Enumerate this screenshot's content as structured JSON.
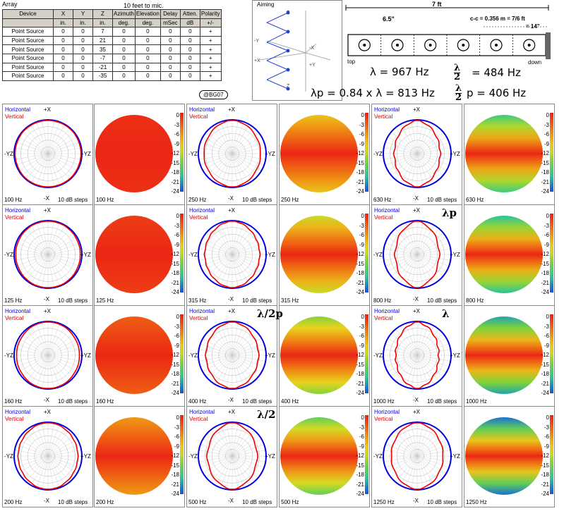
{
  "array": {
    "title": "Array",
    "subtitle": "10 feet to mic.",
    "columns": [
      "Device",
      "X",
      "Y",
      "Z",
      "Azimuth",
      "Elevation",
      "Delay",
      "Atten.",
      "Polarity"
    ],
    "units": [
      "",
      "in.",
      "in.",
      "in.",
      "deg.",
      "deg.",
      "mSec",
      "dB",
      "+/-"
    ],
    "rows": [
      [
        "Point Source",
        "0",
        "0",
        "7",
        "0",
        "0",
        "0",
        "0",
        "+"
      ],
      [
        "Point Source",
        "0",
        "0",
        "21",
        "0",
        "0",
        "0",
        "0",
        "+"
      ],
      [
        "Point Source",
        "0",
        "0",
        "35",
        "0",
        "0",
        "0",
        "0",
        "+"
      ],
      [
        "Point Source",
        "0",
        "0",
        "-7",
        "0",
        "0",
        "0",
        "0",
        "+"
      ],
      [
        "Point Source",
        "0",
        "0",
        "-21",
        "0",
        "0",
        "0",
        "0",
        "+"
      ],
      [
        "Point Source",
        "0",
        "0",
        "-35",
        "0",
        "0",
        "0",
        "0",
        "+"
      ]
    ],
    "credit": "@BG07"
  },
  "aiming": {
    "title": "Aiming",
    "axis_labels": [
      "-Y",
      "+X",
      "-X",
      "+Y",
      "Z",
      "Z"
    ]
  },
  "dimensions": {
    "width_label": "7 ft",
    "spacing_label": "6.5\"",
    "cc_label": "c-c = 0.356 m = 7/6 ft",
    "cc_in_label": "= 14\"",
    "top_label": "top",
    "down_label": "down",
    "speaker_count": 6
  },
  "formulas": {
    "lambda_label": "λ  =  967 Hz",
    "half_lambda_value": "=  484 Hz",
    "lambda_p_label": "λp = 0.84 x λ  = 813 Hz",
    "half_lambda_p_value": "p = 406 Hz",
    "frac_num": "λ",
    "frac_den": "2"
  },
  "legend": {
    "horizontal": "Horizontal",
    "vertical": "Vertical",
    "steps": "10 dB steps",
    "plus_x": "+X",
    "minus_x": "-X",
    "yz_left": "-YZ",
    "yz_right": "+YZ"
  },
  "colors": {
    "horizontal": "#0000dd",
    "vertical": "#ee0000"
  },
  "chart_data": {
    "type": "polar",
    "scale_ticks": [
      "0",
      "-3",
      "-6",
      "-9",
      "-12",
      "-15",
      "-18",
      "-21",
      "-24"
    ],
    "scale_range_db": [
      0,
      -24
    ],
    "polar_steps_db": 10,
    "frequencies": [
      {
        "label": "100 Hz",
        "hz": 100,
        "vertical_lobing": 0.05,
        "heatmap_band": 0.02
      },
      {
        "label": "250 Hz",
        "hz": 250,
        "vertical_lobing": 0.28,
        "heatmap_band": 0.35
      },
      {
        "label": "630 Hz",
        "hz": 630,
        "vertical_lobing": 0.55,
        "heatmap_band": 0.7
      },
      {
        "label": "125 Hz",
        "hz": 125,
        "vertical_lobing": 0.08,
        "heatmap_band": 0.05
      },
      {
        "label": "315 Hz",
        "hz": 315,
        "vertical_lobing": 0.32,
        "heatmap_band": 0.45
      },
      {
        "label": "800 Hz",
        "hz": 800,
        "vertical_lobing": 0.6,
        "heatmap_band": 0.75
      },
      {
        "label": "160 Hz",
        "hz": 160,
        "vertical_lobing": 0.12,
        "heatmap_band": 0.12
      },
      {
        "label": "400 Hz",
        "hz": 400,
        "vertical_lobing": 0.38,
        "heatmap_band": 0.55
      },
      {
        "label": "1000 Hz",
        "hz": 1000,
        "vertical_lobing": 0.62,
        "heatmap_band": 0.8
      },
      {
        "label": "200 Hz",
        "hz": 200,
        "vertical_lobing": 0.2,
        "heatmap_band": 0.25
      },
      {
        "label": "500 Hz",
        "hz": 500,
        "vertical_lobing": 0.45,
        "heatmap_band": 0.62
      },
      {
        "label": "1250 Hz",
        "hz": 1250,
        "vertical_lobing": 0.4,
        "heatmap_band": 0.88
      }
    ],
    "markers": [
      {
        "frequency": "800 Hz",
        "text": "λp"
      },
      {
        "frequency": "400 Hz",
        "text": "λ/2p"
      },
      {
        "frequency": "1000 Hz",
        "text": "λ"
      },
      {
        "frequency": "500 Hz",
        "text": "λ/2"
      }
    ]
  }
}
